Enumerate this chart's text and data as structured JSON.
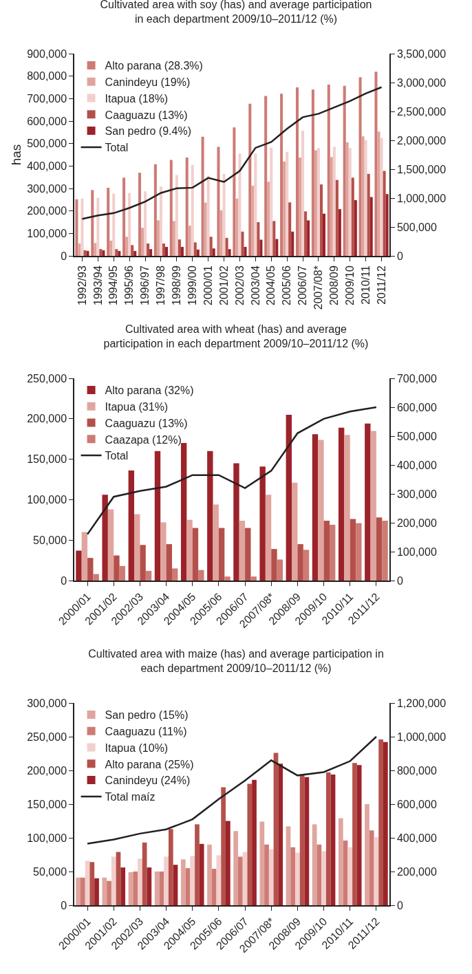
{
  "chart_data": [
    {
      "type": "bar",
      "title": "Cultivated area with soy (has) and average participation\nin each department 2009/10–2011/12 (%)",
      "ylabel": "has",
      "categories": [
        "1992/93",
        "1993/94",
        "1994/95",
        "1995/96",
        "1996/97",
        "1997/98",
        "1998/99",
        "1999/00",
        "2000/01",
        "2001/02",
        "2002/03",
        "2003/04",
        "2004/05",
        "2005/06",
        "2006/07",
        "2007/08*",
        "2008/09",
        "2009/10",
        "2010/11",
        "2011/12"
      ],
      "series": [
        {
          "name": "Alto parana (28.3%)",
          "color": "#cd7b74",
          "values": [
            252000,
            293000,
            303000,
            348000,
            370000,
            408000,
            427000,
            438000,
            530000,
            485000,
            572000,
            677000,
            712000,
            722000,
            750000,
            740000,
            762000,
            757000,
            795000,
            820000
          ]
        },
        {
          "name": "Canindeyu (19%)",
          "color": "#dfa49e",
          "values": [
            55000,
            57000,
            68000,
            85000,
            125000,
            158000,
            155000,
            135000,
            237000,
            203000,
            255000,
            312000,
            330000,
            420000,
            438000,
            470000,
            440000,
            505000,
            532000,
            553000
          ]
        },
        {
          "name": "Itapua (18%)",
          "color": "#f2cfcd",
          "values": [
            255000,
            258000,
            277000,
            280000,
            287000,
            308000,
            360000,
            405000,
            357000,
            365000,
            455000,
            455000,
            482000,
            463000,
            557000,
            480000,
            485000,
            480000,
            515000,
            525000
          ]
        },
        {
          "name": "Caaguazu (13%)",
          "color": "#b4504b",
          "values": [
            25000,
            30000,
            30000,
            48000,
            55000,
            55000,
            73000,
            60000,
            85000,
            80000,
            108000,
            150000,
            155000,
            238000,
            198000,
            318000,
            338000,
            348000,
            365000,
            378000
          ]
        },
        {
          "name": "San pedro (9.4%)",
          "color": "#9c232a",
          "values": [
            22000,
            25000,
            22000,
            22000,
            30000,
            40000,
            40000,
            28000,
            33000,
            30000,
            40000,
            72000,
            75000,
            108000,
            158000,
            188000,
            208000,
            248000,
            262000,
            275000
          ]
        },
        {
          "name": "Total",
          "type": "line",
          "axis": "y2",
          "color": "#231f20",
          "values": [
            640000,
            700000,
            740000,
            830000,
            940000,
            1090000,
            1170000,
            1180000,
            1350000,
            1280000,
            1470000,
            1870000,
            1970000,
            2200000,
            2400000,
            2460000,
            2570000,
            2680000,
            2810000,
            2920000
          ]
        }
      ],
      "ylim": [
        0,
        900000
      ],
      "yticks": [
        {
          "value": 0,
          "label": "0"
        },
        {
          "value": 100000,
          "label": "100,000"
        },
        {
          "value": 200000,
          "label": "200,000"
        },
        {
          "value": 300000,
          "label": "300,000"
        },
        {
          "value": 400000,
          "label": "400,000"
        },
        {
          "value": 500000,
          "label": "500,000"
        },
        {
          "value": 600000,
          "label": "600,000"
        },
        {
          "value": 700000,
          "label": "700,000"
        },
        {
          "value": 800000,
          "label": "800,000"
        },
        {
          "value": 900000,
          "label": "900,000"
        }
      ],
      "y2lim": [
        0,
        3500000
      ],
      "y2ticks": [
        {
          "value": 0,
          "label": "0"
        },
        {
          "value": 500000,
          "label": "500,000"
        },
        {
          "value": 1000000,
          "label": "1,000,000"
        },
        {
          "value": 1500000,
          "label": "1,500,000"
        },
        {
          "value": 2000000,
          "label": "2,000,000"
        },
        {
          "value": 2500000,
          "label": "2,500,000"
        },
        {
          "value": 3000000,
          "label": "3,000,000"
        },
        {
          "value": 3500000,
          "label": "3,500,000"
        }
      ],
      "legend": "top left",
      "marker": "none",
      "line_style": "solid"
    },
    {
      "type": "bar",
      "title": "Cultivated area with wheat (has) and average\nparticipation in each department 2009/10–2011/12 (%)",
      "categories": [
        "2000/01",
        "2001/02",
        "2002/03",
        "2003/04",
        "2004/05",
        "2005/06",
        "2006/07",
        "2007/08*",
        "2008/09",
        "2009/10",
        "2010/11",
        "2011/12"
      ],
      "series": [
        {
          "name": "Alto parana (32%)",
          "color": "#9c232a",
          "values": [
            37000,
            106000,
            136000,
            160000,
            170000,
            160000,
            145000,
            141000,
            205000,
            181000,
            189000,
            194000
          ]
        },
        {
          "name": "Itapua (31%)",
          "color": "#e0a59f",
          "values": [
            60000,
            88000,
            82000,
            72000,
            75000,
            94000,
            74000,
            106000,
            121000,
            174000,
            180000,
            185000
          ]
        },
        {
          "name": "Caaguazu (13%)",
          "color": "#b4504b",
          "values": [
            28000,
            31000,
            44000,
            45000,
            65000,
            65000,
            65000,
            39000,
            45000,
            74000,
            76000,
            78000
          ]
        },
        {
          "name": "Caazapa (12%)",
          "color": "#cd7b74",
          "values": [
            8000,
            18000,
            12000,
            15000,
            13000,
            5000,
            5000,
            26000,
            38000,
            69000,
            71000,
            74000
          ]
        },
        {
          "name": "Total",
          "type": "line",
          "axis": "y2",
          "color": "#231f20",
          "values": [
            160000,
            290000,
            310000,
            325000,
            365000,
            365000,
            320000,
            380000,
            510000,
            560000,
            585000,
            600000
          ]
        }
      ],
      "ylim": [
        0,
        250000
      ],
      "yticks": [
        {
          "value": 0,
          "label": "0"
        },
        {
          "value": 50000,
          "label": "50,000"
        },
        {
          "value": 100000,
          "label": "100,000"
        },
        {
          "value": 150000,
          "label": "150,000"
        },
        {
          "value": 200000,
          "label": "200,000"
        },
        {
          "value": 250000,
          "label": "250,000"
        }
      ],
      "y2lim": [
        0,
        700000
      ],
      "y2ticks": [
        {
          "value": 0,
          "label": "0"
        },
        {
          "value": 100000,
          "label": "100,000"
        },
        {
          "value": 200000,
          "label": "200,000"
        },
        {
          "value": 300000,
          "label": "300,000"
        },
        {
          "value": 400000,
          "label": "400,000"
        },
        {
          "value": 500000,
          "label": "500,000"
        },
        {
          "value": 600000,
          "label": "600,000"
        },
        {
          "value": 700000,
          "label": "700,000"
        }
      ],
      "legend": "top left",
      "marker": "none",
      "line_style": "solid"
    },
    {
      "type": "bar",
      "title": "Cultivated area with maize (has) and average participation in\neach department 2009/10–2011/12 (%)",
      "categories": [
        "2000/01",
        "2001/02",
        "2002/03",
        "2003/04",
        "2004/05",
        "2005/06",
        "2006/07",
        "2007/08*",
        "2008/09",
        "2009/10",
        "2010/11",
        "2011/12"
      ],
      "series": [
        {
          "name": "San pedro (15%)",
          "color": "#e0a59f",
          "values": [
            41000,
            41000,
            49000,
            50000,
            68000,
            90000,
            110000,
            124000,
            117000,
            120000,
            129000,
            150000
          ]
        },
        {
          "name": "Caaguazu (11%)",
          "color": "#cd7b74",
          "values": [
            41000,
            36000,
            50000,
            50000,
            55000,
            54000,
            72000,
            90000,
            86000,
            90000,
            96000,
            111000
          ]
        },
        {
          "name": "Itapua (10%)",
          "color": "#f2cfcd",
          "values": [
            66000,
            72000,
            69000,
            72000,
            73000,
            74000,
            79000,
            83000,
            78000,
            80000,
            86000,
            101000
          ]
        },
        {
          "name": "Alto parana (25%)",
          "color": "#b4504b",
          "values": [
            64000,
            79000,
            93000,
            113000,
            120000,
            175000,
            180000,
            226000,
            194000,
            197000,
            211000,
            246000
          ]
        },
        {
          "name": "Canindeyu (24%)",
          "color": "#9c232a",
          "values": [
            40000,
            56000,
            56000,
            60000,
            91000,
            125000,
            186000,
            210000,
            190000,
            194000,
            208000,
            242000
          ]
        },
        {
          "name": "Total maíz",
          "type": "line",
          "axis": "y2",
          "color": "#231f20",
          "values": [
            365000,
            390000,
            425000,
            450000,
            510000,
            630000,
            740000,
            860000,
            770000,
            790000,
            855000,
            1000000
          ]
        }
      ],
      "ylim": [
        0,
        300000
      ],
      "yticks": [
        {
          "value": 0,
          "label": "0"
        },
        {
          "value": 50000,
          "label": "50,000"
        },
        {
          "value": 100000,
          "label": "100,000"
        },
        {
          "value": 150000,
          "label": "150,000"
        },
        {
          "value": 200000,
          "label": "200,000"
        },
        {
          "value": 250000,
          "label": "250,000"
        },
        {
          "value": 300000,
          "label": "300,000"
        }
      ],
      "y2lim": [
        0,
        1200000
      ],
      "y2ticks": [
        {
          "value": 0,
          "label": "0"
        },
        {
          "value": 200000,
          "label": "200,000"
        },
        {
          "value": 400000,
          "label": "400,000"
        },
        {
          "value": 600000,
          "label": "600,000"
        },
        {
          "value": 800000,
          "label": "800,000"
        },
        {
          "value": 1000000,
          "label": "1,000,000"
        },
        {
          "value": 1200000,
          "label": "1,200,000"
        }
      ],
      "legend": "top left",
      "marker": "none",
      "line_style": "solid"
    }
  ]
}
